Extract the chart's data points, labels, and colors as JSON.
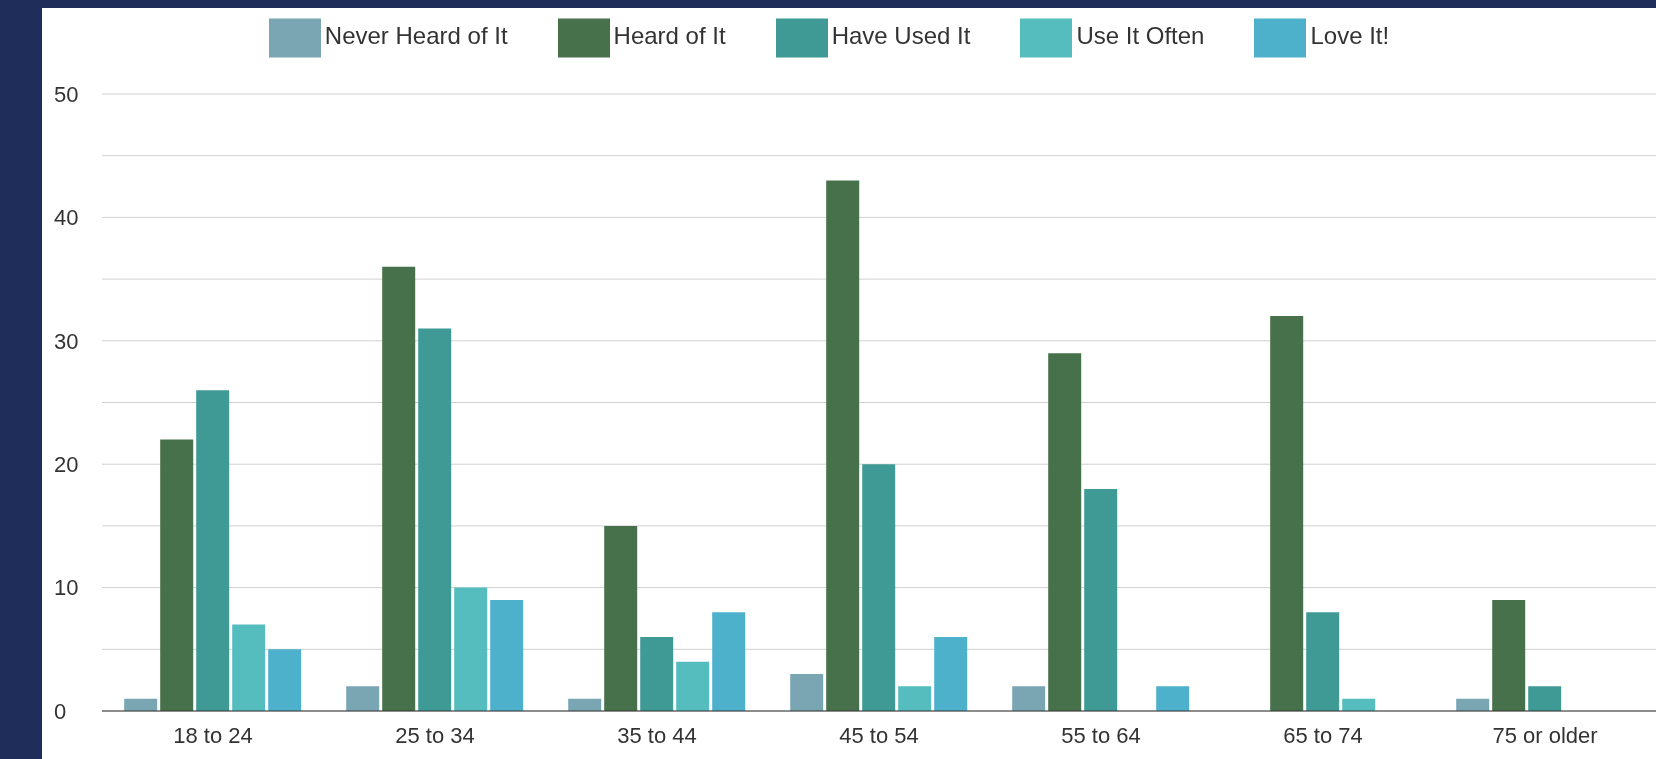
{
  "chart_data": {
    "type": "bar",
    "categories": [
      "18 to 24",
      "25 to 34",
      "35 to 44",
      "45 to 54",
      "55 to 64",
      "65 to 74",
      "75 or older"
    ],
    "series": [
      {
        "name": "Never Heard of It",
        "color": "#7aa5b3",
        "values": [
          1,
          2,
          1,
          3,
          2,
          0,
          1
        ]
      },
      {
        "name": "Heard of It",
        "color": "#46714a",
        "values": [
          22,
          36,
          15,
          43,
          29,
          32,
          9
        ]
      },
      {
        "name": "Have Used It",
        "color": "#3f9a96",
        "values": [
          26,
          31,
          6,
          20,
          18,
          8,
          2
        ]
      },
      {
        "name": "Use It Often",
        "color": "#56bdbf",
        "values": [
          7,
          10,
          4,
          2,
          0,
          1,
          0
        ]
      },
      {
        "name": "Love It!",
        "color": "#4eb1cb",
        "values": [
          5,
          9,
          8,
          6,
          2,
          0,
          0
        ]
      }
    ],
    "ylim": [
      0,
      50
    ],
    "yticks": [
      0,
      {
        "value": 5,
        "label": null
      },
      10,
      {
        "value": 15,
        "label": null
      },
      20,
      {
        "value": 25,
        "label": null
      },
      30,
      {
        "value": 35,
        "label": null
      },
      40,
      {
        "value": 45,
        "label": null
      },
      50
    ],
    "grid": "y",
    "legend": "top"
  }
}
